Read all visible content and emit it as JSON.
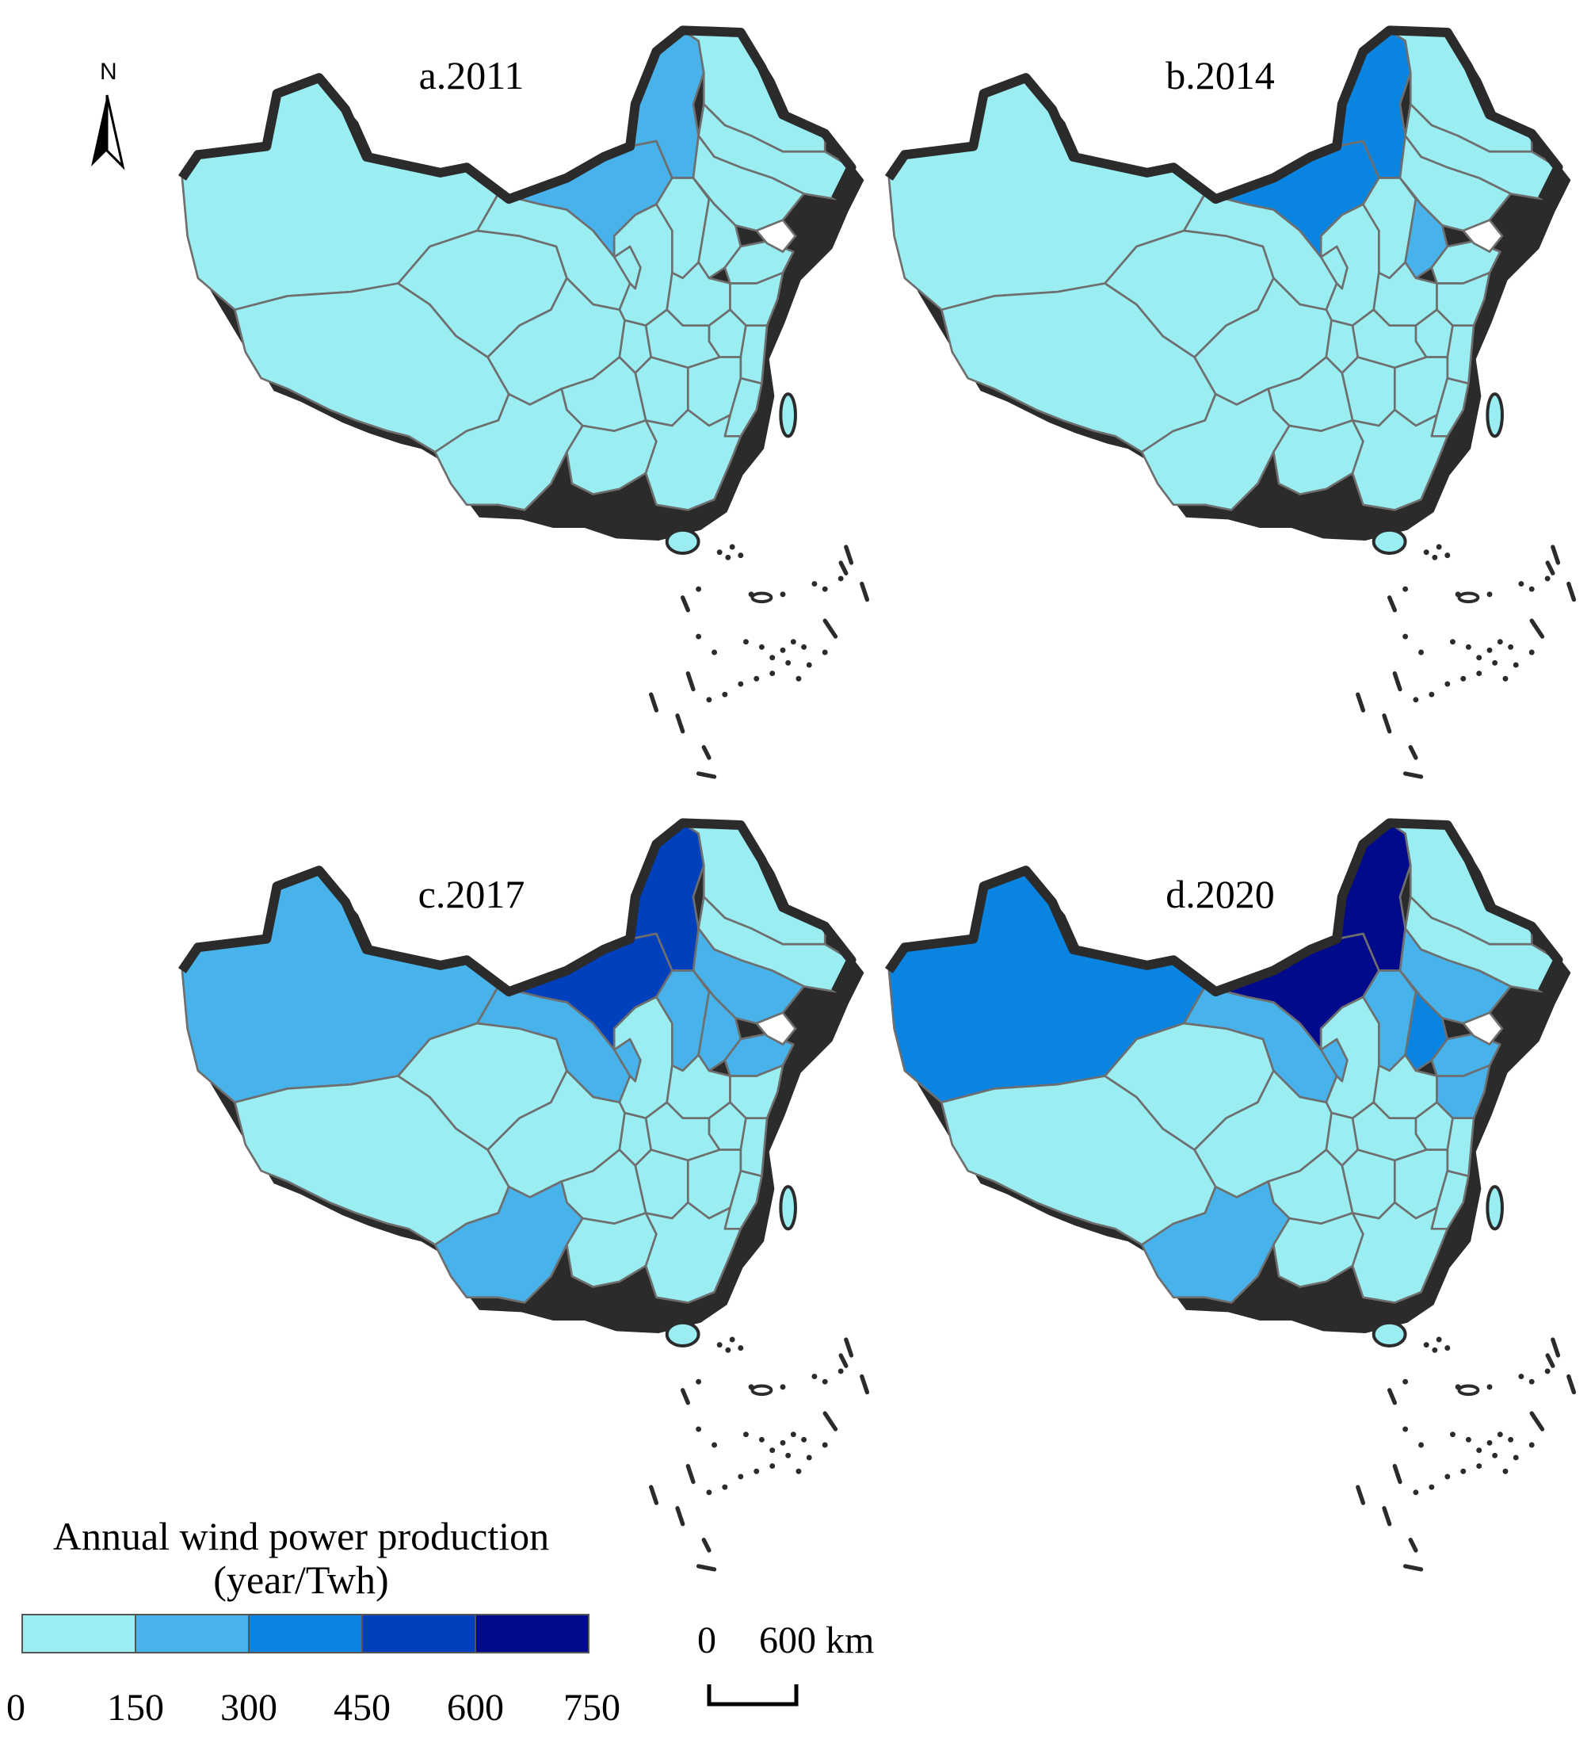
{
  "panels": [
    {
      "label": "a.2011",
      "classes": {
        "north_inner_mongolia": 1,
        "inner_mongolia_west": 1,
        "xinjiang": 0,
        "yunnan": 0,
        "hebei": 0,
        "shandong": 0,
        "gansu": 0,
        "ningxia": 0,
        "shanxi": 0,
        "jiangsu": 0,
        "liaoning": 0,
        "heilongjiang": 0
      }
    },
    {
      "label": "b.2014",
      "classes": {
        "north_inner_mongolia": 2,
        "inner_mongolia_west": 2,
        "xinjiang": 0,
        "yunnan": 0,
        "hebei": 1,
        "shandong": 0,
        "gansu": 0,
        "ningxia": 0,
        "shanxi": 0,
        "jiangsu": 0,
        "liaoning": 0,
        "heilongjiang": 0
      }
    },
    {
      "label": "c.2017",
      "classes": {
        "north_inner_mongolia": 3,
        "inner_mongolia_west": 3,
        "xinjiang": 1,
        "yunnan": 1,
        "hebei": 1,
        "shandong": 1,
        "gansu": 1,
        "ningxia": 1,
        "shanxi": 1,
        "jiangsu": 0,
        "liaoning": 1,
        "heilongjiang": 0
      }
    },
    {
      "label": "d.2020",
      "classes": {
        "north_inner_mongolia": 4,
        "inner_mongolia_west": 4,
        "xinjiang": 2,
        "yunnan": 1,
        "hebei": 2,
        "shandong": 1,
        "gansu": 1,
        "ningxia": 1,
        "shanxi": 1,
        "jiangsu": 1,
        "liaoning": 1,
        "heilongjiang": 0
      }
    }
  ],
  "legend": {
    "title_line1": "Annual wind power production",
    "title_line2": "(year/Twh)",
    "classes": [
      {
        "color": "#9aeef2",
        "from": "0",
        "to": "150"
      },
      {
        "color": "#48b2ea",
        "from": "150",
        "to": "300"
      },
      {
        "color": "#0a84e1",
        "from": "300",
        "to": "450"
      },
      {
        "color": "#0040bd",
        "from": "450",
        "to": "600"
      },
      {
        "color": "#000a8a",
        "from": "600",
        "to": "750"
      }
    ],
    "ticks": [
      "0",
      "150",
      "300",
      "450",
      "600",
      "750"
    ]
  },
  "scale_bar": {
    "left_label": "0",
    "right_label": "600 km"
  },
  "north_arrow": {
    "label": "N",
    "icon": "north-arrow-icon"
  }
}
